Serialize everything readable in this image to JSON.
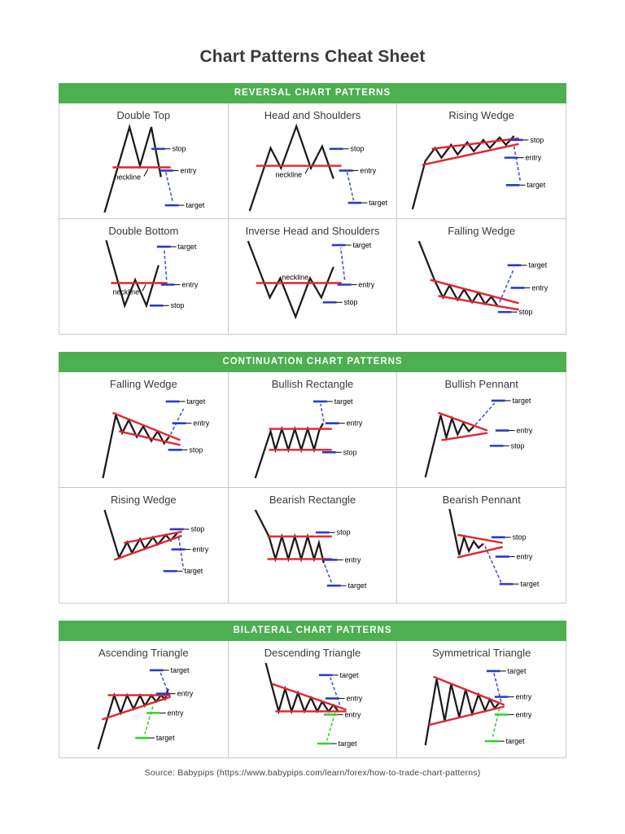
{
  "page": {
    "title": "Chart Patterns Cheat Sheet",
    "footer": "Source: Babypips (https://www.babypips.com/learn/forex/how-to-trade-chart-patterns)"
  },
  "colors": {
    "header_green": "#4caf50",
    "trend_red": "#e3242b",
    "level_blue": "#2b3cc4",
    "level_green": "#2fd32f",
    "price_black": "#1c1c1c"
  },
  "sections": [
    {
      "header": "REVERSAL CHART PATTERNS",
      "patterns": [
        {
          "id": "double-top",
          "name": "Double Top",
          "labels": {
            "stop": "stop",
            "neckline": "neckline",
            "entry": "entry",
            "target": "target"
          }
        },
        {
          "id": "head-and-shoulders",
          "name": "Head and Shoulders",
          "labels": {
            "stop": "stop",
            "neckline": "neckline",
            "entry": "entry",
            "target": "target"
          }
        },
        {
          "id": "rising-wedge-reversal",
          "name": "Rising Wedge",
          "labels": {
            "stop": "stop",
            "entry": "entry",
            "target": "target"
          }
        },
        {
          "id": "double-bottom",
          "name": "Double Bottom",
          "labels": {
            "target": "target",
            "neckline": "neckline",
            "entry": "entry",
            "stop": "stop"
          }
        },
        {
          "id": "inverse-head-and-shoulders",
          "name": "Inverse Head and Shoulders",
          "labels": {
            "target": "target",
            "neckline": "neckline",
            "entry": "entry",
            "stop": "stop"
          }
        },
        {
          "id": "falling-wedge-reversal",
          "name": "Falling Wedge",
          "labels": {
            "target": "target",
            "entry": "entry",
            "stop": "stop"
          }
        }
      ]
    },
    {
      "header": "CONTINUATION CHART PATTERNS",
      "patterns": [
        {
          "id": "falling-wedge-continuation",
          "name": "Falling Wedge",
          "labels": {
            "target": "target",
            "entry": "entry",
            "stop": "stop"
          }
        },
        {
          "id": "bullish-rectangle",
          "name": "Bullish Rectangle",
          "labels": {
            "target": "target",
            "entry": "entry",
            "stop": "stop"
          }
        },
        {
          "id": "bullish-pennant",
          "name": "Bullish Pennant",
          "labels": {
            "target": "target",
            "entry": "entry",
            "stop": "stop"
          }
        },
        {
          "id": "rising-wedge-continuation",
          "name": "Rising Wedge",
          "labels": {
            "stop": "stop",
            "entry": "entry",
            "target": "target"
          }
        },
        {
          "id": "bearish-rectangle",
          "name": "Bearish Rectangle",
          "labels": {
            "stop": "stop",
            "entry": "entry",
            "target": "target"
          }
        },
        {
          "id": "bearish-pennant",
          "name": "Bearish Pennant",
          "labels": {
            "stop": "stop",
            "entry": "entry",
            "target": "target"
          }
        }
      ]
    },
    {
      "header": "BILATERAL CHART PATTERNS",
      "patterns": [
        {
          "id": "ascending-triangle",
          "name": "Ascending Triangle",
          "labels": {
            "target_up": "target",
            "entry_up": "entry",
            "entry_down": "entry",
            "target_down": "target"
          }
        },
        {
          "id": "descending-triangle",
          "name": "Descending Triangle",
          "labels": {
            "target_up": "target",
            "entry_up": "entry",
            "entry_down": "entry",
            "target_down": "target"
          }
        },
        {
          "id": "symmetrical-triangle",
          "name": "Symmetrical Triangle",
          "labels": {
            "target_up": "target",
            "entry_up": "entry",
            "entry_down": "entry",
            "target_down": "target"
          }
        }
      ]
    }
  ]
}
